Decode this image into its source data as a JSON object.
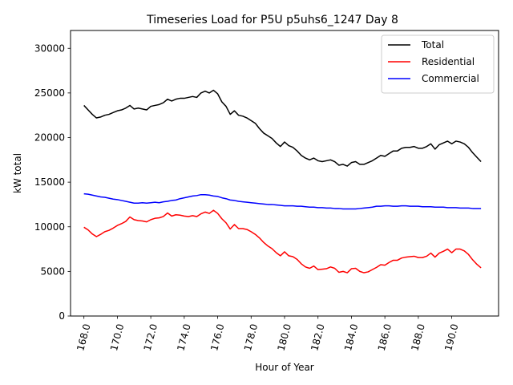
{
  "chart_data": {
    "type": "line",
    "title": "Timeseries Load for P5U p5uhs6_1247  Day 8",
    "xlabel": "Hour of Year",
    "ylabel": "kW total",
    "xlim": [
      167.2,
      192.8
    ],
    "ylim": [
      0,
      32000
    ],
    "xticks": [
      168,
      170,
      172,
      174,
      176,
      178,
      180,
      182,
      184,
      186,
      188,
      190
    ],
    "xtick_labels": [
      "168.0",
      "170.0",
      "172.0",
      "174.0",
      "176.0",
      "178.0",
      "180.0",
      "182.0",
      "184.0",
      "186.0",
      "188.0",
      "190.0"
    ],
    "yticks": [
      0,
      5000,
      10000,
      15000,
      20000,
      25000,
      30000
    ],
    "ytick_labels": [
      "0",
      "5000",
      "10000",
      "15000",
      "20000",
      "25000",
      "30000"
    ],
    "legend_position": "top-right",
    "x": [
      168.0,
      168.25,
      168.5,
      168.75,
      169.0,
      169.25,
      169.5,
      169.75,
      170.0,
      170.25,
      170.5,
      170.75,
      171.0,
      171.25,
      171.5,
      171.75,
      172.0,
      172.25,
      172.5,
      172.75,
      173.0,
      173.25,
      173.5,
      173.75,
      174.0,
      174.25,
      174.5,
      174.75,
      175.0,
      175.25,
      175.5,
      175.75,
      176.0,
      176.25,
      176.5,
      176.75,
      177.0,
      177.25,
      177.5,
      177.75,
      178.0,
      178.25,
      178.5,
      178.75,
      179.0,
      179.25,
      179.5,
      179.75,
      180.0,
      180.25,
      180.5,
      180.75,
      181.0,
      181.25,
      181.5,
      181.75,
      182.0,
      182.25,
      182.5,
      182.75,
      183.0,
      183.25,
      183.5,
      183.75,
      184.0,
      184.25,
      184.5,
      184.75,
      185.0,
      185.25,
      185.5,
      185.75,
      186.0,
      186.25,
      186.5,
      186.75,
      187.0,
      187.25,
      187.5,
      187.75,
      188.0,
      188.25,
      188.5,
      188.75,
      189.0,
      189.25,
      189.5,
      189.75,
      190.0,
      190.25,
      190.5,
      190.75,
      191.0,
      191.25,
      191.5,
      191.75
    ],
    "series": [
      {
        "name": "Total",
        "color": "#000000",
        "values": [
          23600,
          23100,
          22600,
          22200,
          22300,
          22500,
          22600,
          22800,
          23000,
          23100,
          23300,
          23600,
          23200,
          23300,
          23200,
          23100,
          23500,
          23600,
          23700,
          23900,
          24300,
          24100,
          24300,
          24400,
          24400,
          24500,
          24600,
          24500,
          25000,
          25200,
          25000,
          25300,
          24900,
          24000,
          23500,
          22600,
          23000,
          22500,
          22400,
          22200,
          21900,
          21600,
          21000,
          20500,
          20200,
          19900,
          19400,
          19000,
          19500,
          19100,
          18900,
          18500,
          18000,
          17700,
          17500,
          17700,
          17400,
          17300,
          17400,
          17500,
          17300,
          16900,
          17000,
          16800,
          17200,
          17300,
          17000,
          17000,
          17200,
          17400,
          17700,
          18000,
          17900,
          18200,
          18500,
          18500,
          18800,
          18900,
          18900,
          19000,
          18800,
          18800,
          19000,
          19300,
          18700,
          19200,
          19400,
          19600,
          19300,
          19600,
          19500,
          19300,
          18900,
          18300,
          17800,
          17300
        ]
      },
      {
        "name": "Residential",
        "color": "#ff0000",
        "values": [
          9950,
          9650,
          9200,
          8900,
          9150,
          9450,
          9600,
          9850,
          10150,
          10350,
          10600,
          11100,
          10800,
          10700,
          10650,
          10550,
          10800,
          10950,
          11000,
          11150,
          11550,
          11200,
          11350,
          11300,
          11200,
          11150,
          11250,
          11150,
          11450,
          11650,
          11500,
          11850,
          11500,
          10900,
          10450,
          9750,
          10250,
          9800,
          9800,
          9700,
          9450,
          9150,
          8750,
          8250,
          7850,
          7550,
          7100,
          6750,
          7200,
          6750,
          6650,
          6350,
          5850,
          5500,
          5350,
          5600,
          5200,
          5250,
          5300,
          5500,
          5350,
          4900,
          5000,
          4850,
          5300,
          5350,
          5000,
          4850,
          4950,
          5200,
          5450,
          5750,
          5700,
          6000,
          6250,
          6250,
          6500,
          6600,
          6650,
          6700,
          6550,
          6550,
          6700,
          7050,
          6600,
          7050,
          7250,
          7500,
          7100,
          7500,
          7500,
          7300,
          6900,
          6300,
          5800,
          5400
        ]
      },
      {
        "name": "Commercial",
        "color": "#0000ff",
        "values": [
          13700,
          13650,
          13550,
          13450,
          13350,
          13300,
          13200,
          13100,
          13050,
          12950,
          12850,
          12750,
          12650,
          12650,
          12700,
          12650,
          12700,
          12750,
          12700,
          12800,
          12850,
          12950,
          13000,
          13150,
          13250,
          13350,
          13450,
          13500,
          13600,
          13600,
          13550,
          13450,
          13400,
          13250,
          13150,
          13000,
          12950,
          12850,
          12800,
          12750,
          12700,
          12650,
          12600,
          12550,
          12500,
          12500,
          12450,
          12400,
          12350,
          12350,
          12350,
          12300,
          12300,
          12250,
          12200,
          12200,
          12150,
          12150,
          12100,
          12100,
          12050,
          12050,
          12000,
          12000,
          12000,
          12000,
          12050,
          12100,
          12150,
          12200,
          12300,
          12300,
          12350,
          12350,
          12300,
          12300,
          12350,
          12350,
          12300,
          12300,
          12300,
          12250,
          12250,
          12250,
          12200,
          12200,
          12200,
          12150,
          12150,
          12150,
          12100,
          12100,
          12100,
          12050,
          12050,
          12050
        ]
      }
    ]
  }
}
